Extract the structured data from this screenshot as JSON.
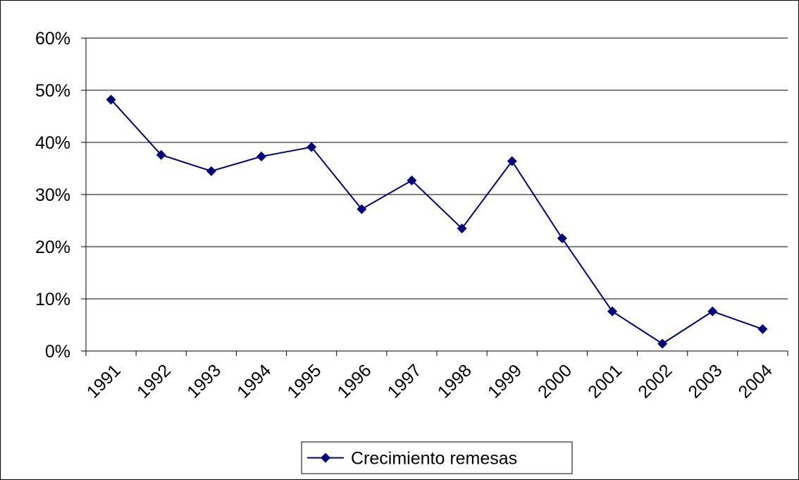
{
  "chart_data": {
    "type": "line",
    "categories": [
      "1991",
      "1992",
      "1993",
      "1994",
      "1995",
      "1996",
      "1997",
      "1998",
      "1999",
      "2000",
      "2001",
      "2002",
      "2003",
      "2004"
    ],
    "series": [
      {
        "name": "Crecimiento remesas",
        "color": "#000080",
        "values": [
          48.2,
          37.6,
          34.5,
          37.3,
          39.1,
          27.2,
          32.7,
          23.5,
          36.4,
          21.6,
          7.6,
          1.4,
          7.6,
          4.2
        ]
      }
    ],
    "ylim": [
      0,
      60
    ],
    "yticks": [
      {
        "value": 0,
        "label": "0%"
      },
      {
        "value": 10,
        "label": "10%"
      },
      {
        "value": 20,
        "label": "20%"
      },
      {
        "value": 30,
        "label": "30%"
      },
      {
        "value": 40,
        "label": "40%"
      },
      {
        "value": 50,
        "label": "50%"
      },
      {
        "value": 60,
        "label": "60%"
      }
    ],
    "grid": true,
    "legend": "bottom"
  }
}
